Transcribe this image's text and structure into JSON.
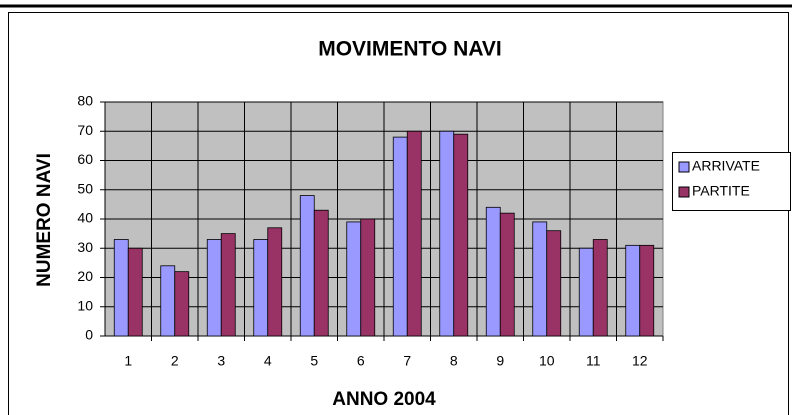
{
  "chart_data": {
    "type": "bar",
    "title": "MOVIMENTO NAVI",
    "x_label": "ANNO 2004",
    "y_label": "NUMERO NAVI",
    "categories": [
      "1",
      "2",
      "3",
      "4",
      "5",
      "6",
      "7",
      "8",
      "9",
      "10",
      "11",
      "12"
    ],
    "series": [
      {
        "name": "ARRIVATE",
        "color": "#9999ff",
        "values": [
          33,
          24,
          33,
          33,
          48,
          39,
          68,
          70,
          44,
          39,
          30,
          31
        ]
      },
      {
        "name": "PARTITE",
        "color": "#993366",
        "values": [
          30,
          22,
          35,
          37,
          43,
          40,
          70,
          69,
          42,
          36,
          33,
          31
        ]
      }
    ],
    "ylim": [
      0,
      80
    ],
    "yticks": [
      0,
      10,
      20,
      30,
      40,
      50,
      60,
      70,
      80
    ],
    "grid": true,
    "legend": "right"
  }
}
